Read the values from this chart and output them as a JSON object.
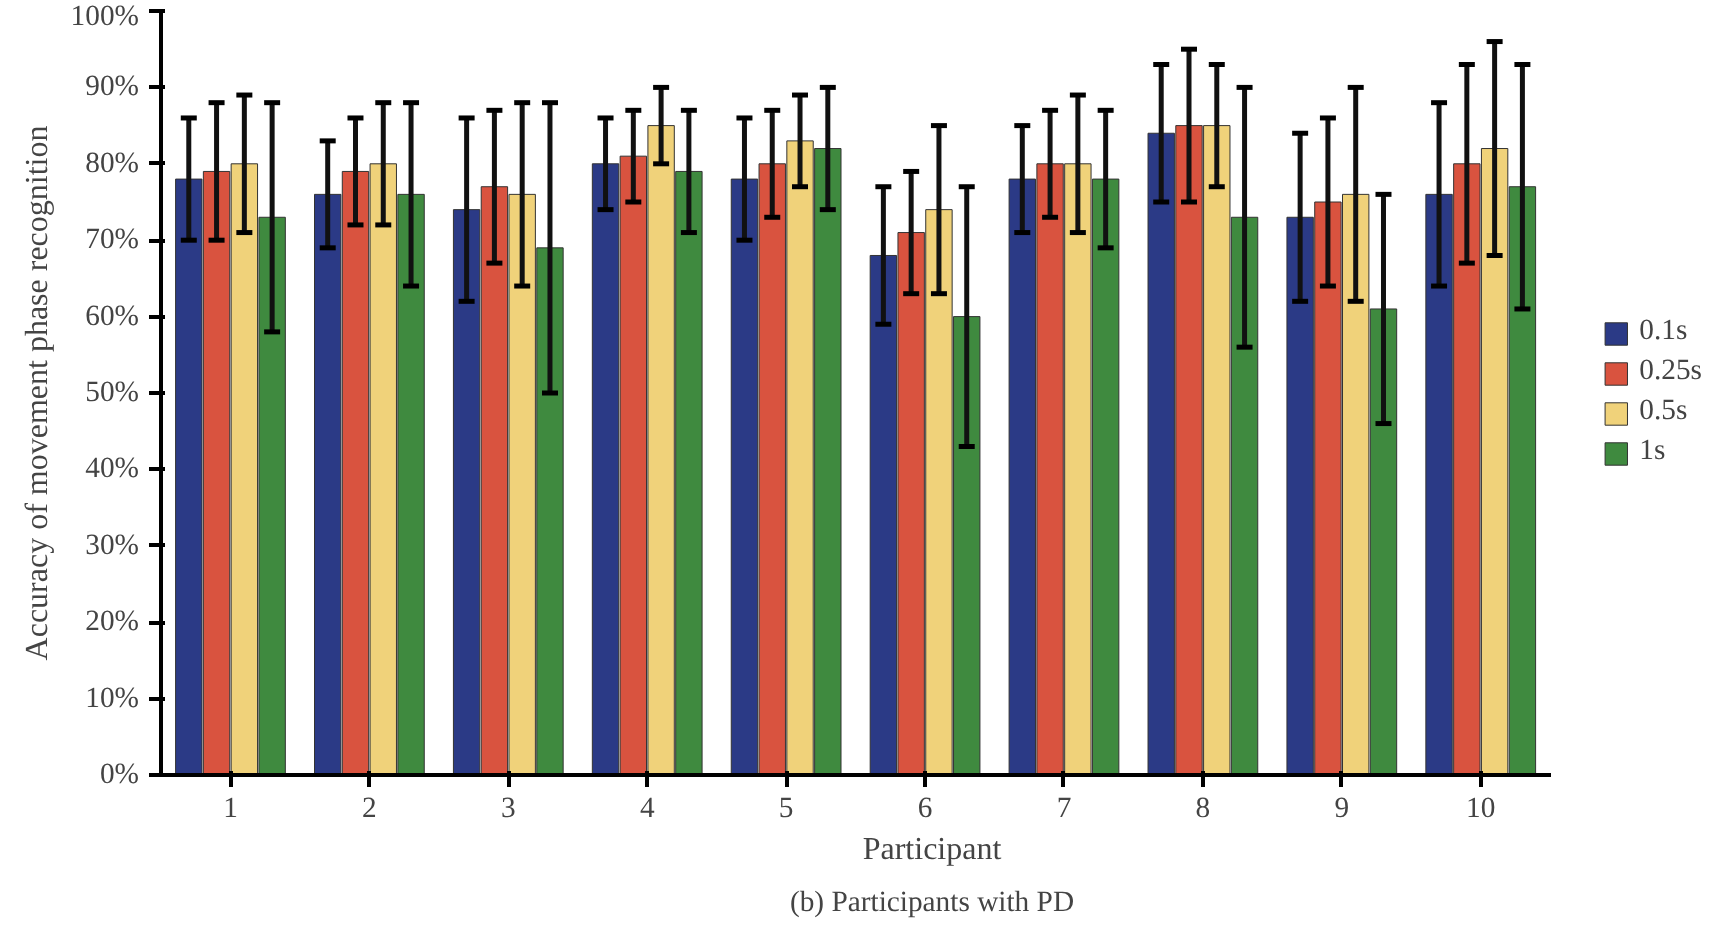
{
  "chart_data": {
    "type": "bar",
    "xlabel": "Participant",
    "ylabel": "Accuracy of movement phase recognition",
    "categories": [
      "1",
      "2",
      "3",
      "4",
      "5",
      "6",
      "7",
      "8",
      "9",
      "10"
    ],
    "series": [
      {
        "name": "0.1s",
        "color": "#2b3a86",
        "values": [
          78,
          76,
          74,
          80,
          78,
          68,
          78,
          84,
          73,
          76
        ],
        "errors": [
          8,
          7,
          12,
          6,
          8,
          9,
          7,
          9,
          11,
          12
        ]
      },
      {
        "name": "0.25s",
        "color": "#d9533f",
        "values": [
          79,
          79,
          77,
          81,
          80,
          71,
          80,
          85,
          75,
          80
        ],
        "errors": [
          9,
          7,
          10,
          6,
          7,
          8,
          7,
          10,
          11,
          13
        ]
      },
      {
        "name": "0.5s",
        "color": "#f0d27a",
        "values": [
          80,
          80,
          76,
          85,
          83,
          74,
          80,
          85,
          76,
          82
        ],
        "errors": [
          9,
          8,
          12,
          5,
          6,
          11,
          9,
          8,
          14,
          14
        ]
      },
      {
        "name": "1s",
        "color": "#3f8a3f",
        "values": [
          73,
          76,
          69,
          79,
          82,
          60,
          78,
          73,
          61,
          77
        ],
        "errors": [
          15,
          12,
          19,
          8,
          8,
          17,
          9,
          17,
          15,
          16
        ]
      }
    ],
    "ylim": [
      0,
      100
    ],
    "yticks": [
      {
        "value": 0,
        "label": "0%"
      },
      {
        "value": 10,
        "label": "10%"
      },
      {
        "value": 20,
        "label": "20%"
      },
      {
        "value": 30,
        "label": "30%"
      },
      {
        "value": 40,
        "label": "40%"
      },
      {
        "value": 50,
        "label": "50%"
      },
      {
        "value": 60,
        "label": "60%"
      },
      {
        "value": 70,
        "label": "70%"
      },
      {
        "value": 80,
        "label": "80%"
      },
      {
        "value": 90,
        "label": "90%"
      },
      {
        "value": 100,
        "label": "100%"
      }
    ],
    "grid": false,
    "legend": "right",
    "annotations": [
      "(b) Participants with PD"
    ]
  }
}
